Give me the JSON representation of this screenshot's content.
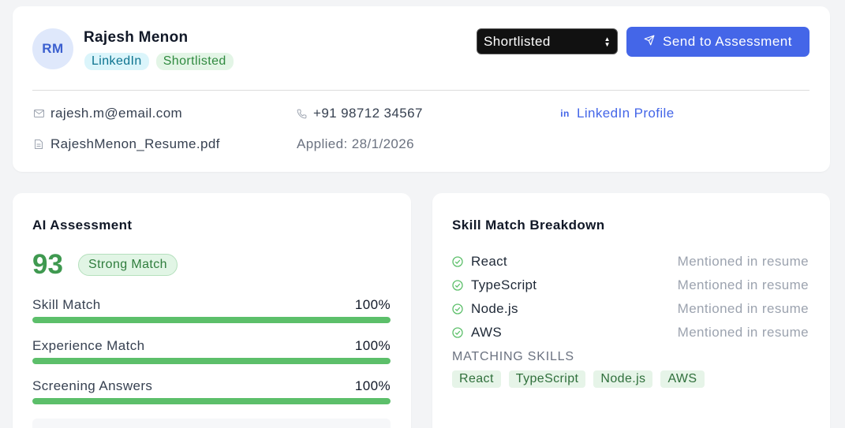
{
  "candidate": {
    "initials": "RM",
    "name": "Rajesh Menon",
    "source_badge": "LinkedIn",
    "status_badge": "Shortlisted"
  },
  "actions": {
    "status_select_value": "Shortlisted",
    "send_button_label": "Send to Assessment"
  },
  "contact": {
    "email": "rajesh.m@email.com",
    "phone": "+91 98712 34567",
    "linkedin_label": "LinkedIn Profile",
    "resume_file": "RajeshMenon_Resume.pdf",
    "applied": "Applied: 28/1/2026"
  },
  "ai_assessment": {
    "title": "AI Assessment",
    "score": "93",
    "match_label": "Strong Match",
    "metrics": [
      {
        "label": "Skill Match",
        "value": "100%",
        "fraction": 1.0
      },
      {
        "label": "Experience Match",
        "value": "100%",
        "fraction": 1.0
      },
      {
        "label": "Screening Answers",
        "value": "100%",
        "fraction": 1.0
      }
    ]
  },
  "skill_breakdown": {
    "title": "Skill Match Breakdown",
    "skills": [
      {
        "name": "React",
        "note": "Mentioned in resume"
      },
      {
        "name": "TypeScript",
        "note": "Mentioned in resume"
      },
      {
        "name": "Node.js",
        "note": "Mentioned in resume"
      },
      {
        "name": "AWS",
        "note": "Mentioned in resume"
      }
    ],
    "matching_label": "MATCHING SKILLS",
    "matching_skills": [
      "React",
      "TypeScript",
      "Node.js",
      "AWS"
    ]
  },
  "colors": {
    "accent": "#4466e8",
    "success": "#5cbf6a",
    "score": "#3f9950"
  },
  "icons": {
    "email": "mail-icon",
    "phone": "phone-icon",
    "linkedin": "linkedin-icon",
    "resume": "document-icon",
    "send": "send-icon",
    "check": "check-circle-icon"
  }
}
